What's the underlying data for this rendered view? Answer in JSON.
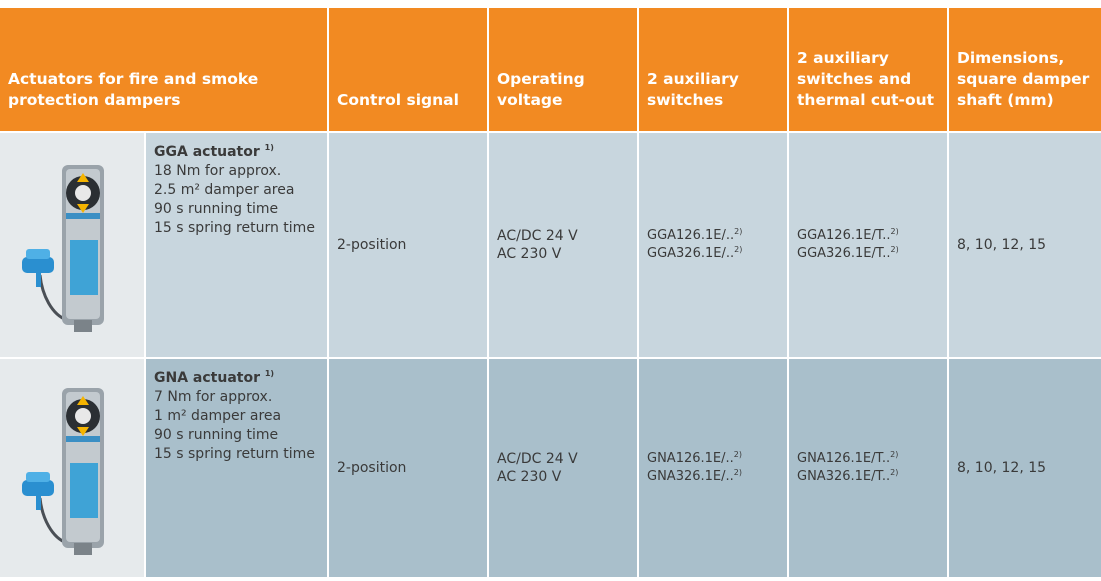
{
  "header": {
    "title": "Actuators for fire and smoke protection dampers",
    "columns": [
      "Control signal",
      "Operating voltage",
      "2 auxiliary switches",
      "2 auxiliary switches and thermal cut-out",
      "Dimensions, square damper shaft (mm)"
    ]
  },
  "rows": [
    {
      "name": "GGA actuator",
      "name_note": "1)",
      "description": [
        "18 Nm for approx.",
        "2.5 m² damper area",
        "90 s running time",
        "15 s spring return time"
      ],
      "control_signal": "2-position",
      "voltage": [
        "AC/DC 24 V",
        "AC 230 V"
      ],
      "aux_switches": [
        {
          "code": "GGA126.1E/..",
          "note": "2)"
        },
        {
          "code": "GGA326.1E/..",
          "note": "2)"
        }
      ],
      "aux_thermal": [
        {
          "code": "GGA126.1E/T..",
          "note": "2)"
        },
        {
          "code": "GGA326.1E/T..",
          "note": "2)"
        }
      ],
      "dimensions": "8, 10, 12, 15"
    },
    {
      "name": "GNA actuator",
      "name_note": "1)",
      "description": [
        "7 Nm for approx.",
        "1 m² damper area",
        "90 s running time",
        "15 s spring return time"
      ],
      "control_signal": "2-position",
      "voltage": [
        "AC/DC 24 V",
        "AC 230 V"
      ],
      "aux_switches": [
        {
          "code": "GNA126.1E/..",
          "note": "2)"
        },
        {
          "code": "GNA326.1E/..",
          "note": "2)"
        }
      ],
      "aux_thermal": [
        {
          "code": "GNA126.1E/T..",
          "note": "2)"
        },
        {
          "code": "GNA326.1E/T..",
          "note": "2)"
        }
      ],
      "dimensions": "8, 10, 12, 15"
    }
  ]
}
